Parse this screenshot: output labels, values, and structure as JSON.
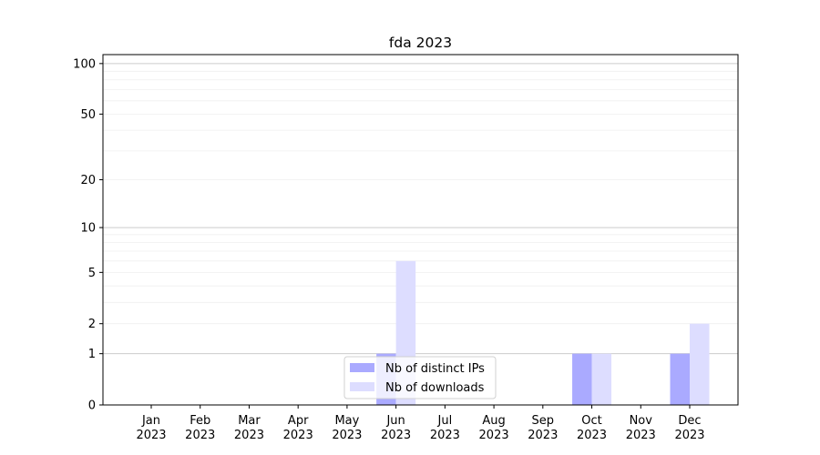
{
  "chart_data": {
    "type": "bar",
    "title": "fda 2023",
    "categories": [
      "Jan\n2023",
      "Feb\n2023",
      "Mar\n2023",
      "Apr\n2023",
      "May\n2023",
      "Jun\n2023",
      "Jul\n2023",
      "Aug\n2023",
      "Sep\n2023",
      "Oct\n2023",
      "Nov\n2023",
      "Dec\n2023"
    ],
    "series": [
      {
        "name": "Nb of distinct IPs",
        "color": "#aaaaff",
        "values": [
          0,
          0,
          0,
          0,
          0,
          1,
          0,
          0,
          0,
          1,
          0,
          1
        ]
      },
      {
        "name": "Nb of downloads",
        "color": "#ddddff",
        "values": [
          0,
          0,
          0,
          0,
          0,
          6,
          0,
          0,
          0,
          1,
          0,
          2
        ]
      }
    ],
    "xlabel": "",
    "ylabel": "",
    "yscale": "log(1+y)",
    "ylim": [
      0,
      113
    ],
    "yticks": [
      0,
      1,
      2,
      5,
      10,
      20,
      50,
      100
    ],
    "grid": true,
    "legend": "lower-center"
  }
}
